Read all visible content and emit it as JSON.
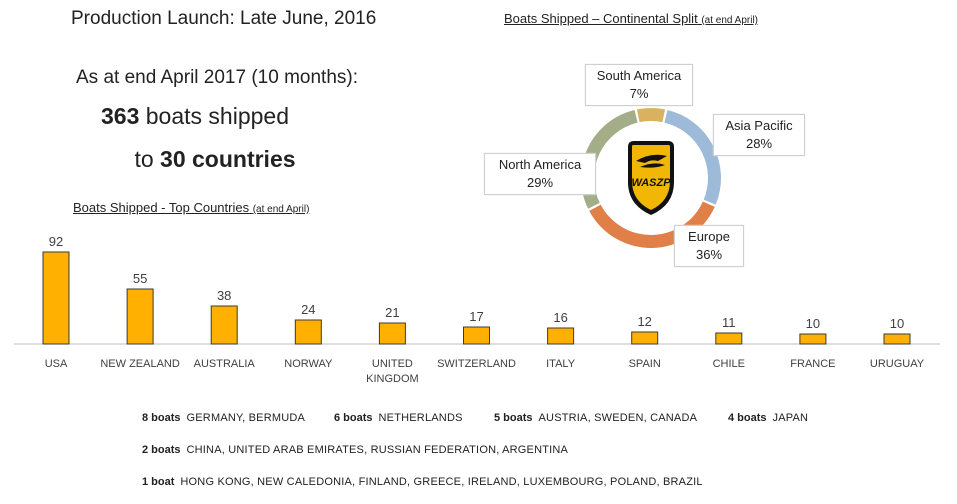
{
  "header": {
    "launch": "Production Launch: Late June, 2016",
    "as_at": "As at end April 2017 (10 months):",
    "boats_num": "363",
    "boats_text": " boats shipped",
    "to_text": "to ",
    "countries_num": "30 countries"
  },
  "chart_data": [
    {
      "type": "bar",
      "title": "Boats Shipped  - Top Countries",
      "title_note": "(at end April)",
      "categories": [
        "USA",
        "NEW ZEALAND",
        "AUSTRALIA",
        "NORWAY",
        "UNITED KINGDOM",
        "SWITZERLAND",
        "ITALY",
        "SPAIN",
        "CHILE",
        "FRANCE",
        "URUGUAY"
      ],
      "category_lines": [
        [
          "USA"
        ],
        [
          "NEW ZEALAND"
        ],
        [
          "AUSTRALIA"
        ],
        [
          "NORWAY"
        ],
        [
          "UNITED",
          "KINGDOM"
        ],
        [
          "SWITZERLAND"
        ],
        [
          "ITALY"
        ],
        [
          "SPAIN"
        ],
        [
          "CHILE"
        ],
        [
          "FRANCE"
        ],
        [
          "URUGUAY"
        ]
      ],
      "values": [
        92,
        55,
        38,
        24,
        21,
        17,
        16,
        12,
        11,
        10,
        10
      ],
      "color": "#FFB000",
      "stroke": "#3a3a3a",
      "ylim": [
        0,
        100
      ],
      "grid": false
    },
    {
      "type": "pie",
      "subtype": "donut",
      "title": "Boats Shipped – Continental Split",
      "title_note": "(at end April)",
      "slices": [
        {
          "label": "South America",
          "value": 7,
          "display": "7%",
          "color": "#D9B25F"
        },
        {
          "label": "Asia Pacific",
          "value": 28,
          "display": "28%",
          "color": "#9DBBD8"
        },
        {
          "label": "Europe",
          "value": 36,
          "display": "36%",
          "color": "#E07F48"
        },
        {
          "label": "North America",
          "value": 29,
          "display": "29%",
          "color": "#A3AE88"
        }
      ]
    }
  ],
  "logo": {
    "text": "WASZP",
    "color": "#F2B705"
  },
  "other_countries": [
    {
      "count": "8 boats",
      "names": "GERMANY,  BERMUDA"
    },
    {
      "count": "6 boats",
      "names": "NETHERLANDS"
    },
    {
      "count": "5 boats",
      "names": "AUSTRIA,  SWEDEN,  CANADA"
    },
    {
      "count": "4 boats",
      "names": "JAPAN"
    },
    {
      "count": "2 boats",
      "names": "CHINA,  UNITED ARAB EMIRATES,  RUSSIAN FEDERATION,  ARGENTINA"
    },
    {
      "count": "1 boat",
      "names": "HONG KONG,  NEW CALEDONIA,  FINLAND,  GREECE,  IRELAND,  LUXEMBOURG,  POLAND,  BRAZIL"
    }
  ]
}
